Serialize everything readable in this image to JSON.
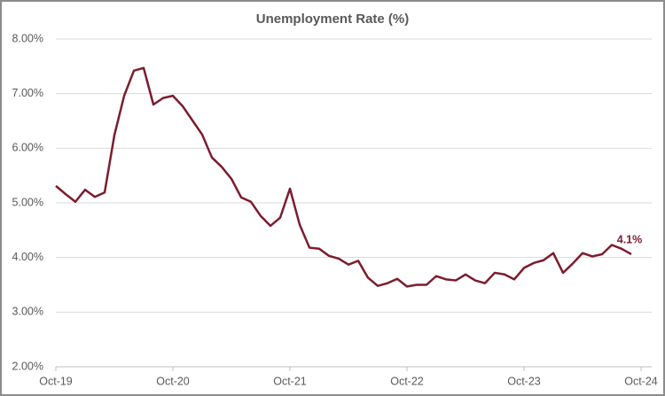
{
  "chart_data": {
    "type": "line",
    "title": "Unemployment Rate (%)",
    "categories": [
      "Oct-19",
      null,
      null,
      null,
      null,
      null,
      null,
      null,
      null,
      null,
      null,
      null,
      "Oct-20",
      null,
      null,
      null,
      null,
      null,
      null,
      null,
      null,
      null,
      null,
      null,
      "Oct-21",
      null,
      null,
      null,
      null,
      null,
      null,
      null,
      null,
      null,
      null,
      null,
      "Oct-22",
      null,
      null,
      null,
      null,
      null,
      null,
      null,
      null,
      null,
      null,
      null,
      "Oct-23",
      null,
      null,
      null,
      null,
      null,
      null,
      null,
      null,
      null,
      null,
      null,
      "Oct-24"
    ],
    "series": [
      {
        "color": "#7b1c2e",
        "values": [
          5.31,
          5.16,
          5.02,
          5.24,
          5.11,
          5.19,
          6.24,
          6.96,
          7.42,
          7.47,
          6.8,
          6.92,
          6.96,
          6.77,
          6.51,
          6.25,
          5.83,
          5.66,
          5.44,
          5.1,
          5.02,
          4.76,
          4.58,
          4.73,
          5.26,
          4.6,
          4.18,
          4.16,
          4.03,
          3.98,
          3.87,
          3.94,
          3.63,
          3.48,
          3.53,
          3.61,
          3.47,
          3.5,
          3.5,
          3.66,
          3.6,
          3.58,
          3.69,
          3.58,
          3.53,
          3.72,
          3.69,
          3.6,
          3.81,
          3.9,
          3.95,
          4.08,
          3.72,
          3.89,
          4.08,
          4.02,
          4.06,
          4.23,
          4.16,
          4.06,
          null
        ],
        "value_labels": [
          null,
          null,
          null,
          null,
          null,
          null,
          null,
          null,
          null,
          null,
          null,
          null,
          null,
          null,
          null,
          null,
          null,
          null,
          null,
          null,
          null,
          null,
          null,
          null,
          null,
          null,
          null,
          null,
          null,
          null,
          null,
          null,
          null,
          null,
          null,
          null,
          null,
          null,
          null,
          null,
          null,
          null,
          null,
          null,
          null,
          null,
          null,
          null,
          null,
          null,
          null,
          null,
          null,
          null,
          null,
          null,
          null,
          null,
          null,
          "4.1%",
          null
        ]
      }
    ],
    "ylim": [
      2,
      8
    ],
    "yticks": [
      {
        "value": 2,
        "label": "2.00%"
      },
      {
        "value": 3,
        "label": "3.00%"
      },
      {
        "value": 4,
        "label": "4.00%"
      },
      {
        "value": 5,
        "label": "5.00%"
      },
      {
        "value": 6,
        "label": "6.00%"
      },
      {
        "value": 7,
        "label": "7.00%"
      },
      {
        "value": 8,
        "label": "8.00%"
      }
    ],
    "grid": true
  }
}
